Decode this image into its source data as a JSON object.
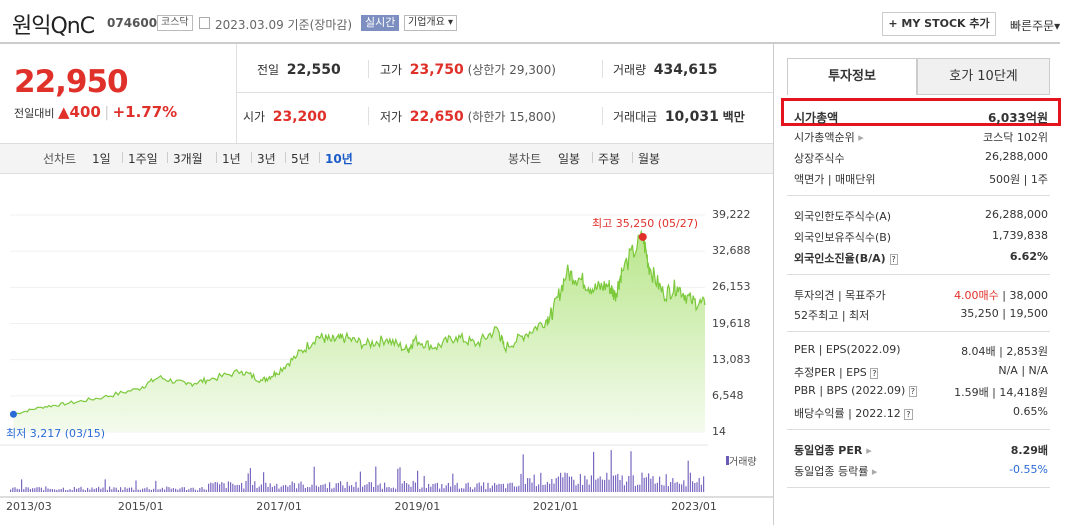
{
  "header": {
    "name": "원익QnC",
    "code": "074600",
    "market_badge": "코스닥",
    "date_text": "2023.03.09  기준(장마감)",
    "realtime_badge": "실시간",
    "company_overview": "기업개요",
    "my_stock_button": "+ MY STOCK 추가",
    "quick_order": "빠른주문"
  },
  "price": {
    "current": "22,950",
    "change_label": "전일대비",
    "change_arrow": "▲",
    "change": "400",
    "change_pct": "+1.77%"
  },
  "summary": {
    "prev_label": "전일",
    "prev": "22,550",
    "high_label": "고가",
    "high": "23,750",
    "upper_limit": "(상한가 29,300)",
    "volume_label": "거래량",
    "volume": "434,615",
    "open_label": "시가",
    "open": "23,200",
    "low_label": "저가",
    "low": "22,650",
    "lower_limit": "(하한가 15,800)",
    "amount_label": "거래대금",
    "amount": "10,031",
    "amount_unit": "백만"
  },
  "chart_tabs": {
    "line_chart_label": "선차트",
    "periods": [
      "1일",
      "1주일",
      "3개월",
      "1년",
      "3년",
      "5년",
      "10년"
    ],
    "selected_period": "10년",
    "candle_chart_label": "봉차트",
    "candles": [
      "일봉",
      "주봉",
      "월봉"
    ]
  },
  "chart_data": {
    "type": "area",
    "x_ticks": [
      "2013/03",
      "2015/01",
      "2017/01",
      "2019/01",
      "2021/01",
      "2023/01"
    ],
    "y_ticks": [
      "39,222",
      "32,688",
      "26,153",
      "19,618",
      "13,083",
      "6,548",
      "14"
    ],
    "high_annotation": "최고 35,250 (05/27)",
    "low_annotation": "최저 3,217 (03/15)",
    "volume_legend": "거래량",
    "series": [
      {
        "x": [
          2013.2,
          2013.6,
          2014.0,
          2014.5,
          2015.0,
          2015.3,
          2015.7,
          2016.0,
          2016.5,
          2016.8,
          2017.0,
          2017.3,
          2017.6,
          2017.8,
          2018.0,
          2018.3,
          2018.6,
          2018.9,
          2019.0,
          2019.3,
          2019.6,
          2019.9,
          2020.2,
          2020.3,
          2020.6,
          2020.9,
          2021.0,
          2021.2,
          2021.4,
          2021.6,
          2021.8,
          2021.9,
          2022.0,
          2022.3,
          2022.4,
          2022.6,
          2022.8,
          2023.0,
          2023.2
        ],
        "y": [
          3217,
          4500,
          5200,
          6300,
          7800,
          9900,
          8600,
          9400,
          11000,
          9300,
          10700,
          13800,
          17300,
          16500,
          17000,
          15800,
          16800,
          14800,
          16700,
          15300,
          17200,
          15900,
          18700,
          15200,
          17600,
          20200,
          21600,
          28800,
          27600,
          25800,
          26600,
          24700,
          29100,
          35250,
          29600,
          24900,
          26300,
          23700,
          22950
        ]
      }
    ]
  },
  "right_panel": {
    "tabs": [
      "투자정보",
      "호가 10단계"
    ],
    "market_cap_label": "시가총액",
    "market_cap": "6,033억원",
    "market_cap_rank_label": "시가총액순위",
    "market_cap_rank": "코스닥 102위",
    "shares_label": "상장주식수",
    "shares": "26,288,000",
    "par_label": "액면가 | 매매단위",
    "par": "500원 | 1주",
    "foreign_limit_label": "외국인한도주식수(A)",
    "foreign_limit": "26,288,000",
    "foreign_hold_label": "외국인보유주식수(B)",
    "foreign_hold": "1,739,838",
    "foreign_rate_label": "외국인소진율(B/A)",
    "foreign_rate": "6.62%",
    "opinion_label": "투자의견 | 목표주가",
    "opinion": "4.00매수",
    "target": "| 38,000",
    "week52_label": "52주최고 | 최저",
    "week52": "35,250 | 19,500",
    "per_label": "PER | EPS(2022.09)",
    "per": "8.04배 | 2,853원",
    "est_per_label": "추정PER | EPS",
    "est_per": "N/A | N/A",
    "pbr_label": "PBR | BPS (2022.09)",
    "pbr": "1.59배 | 14,418원",
    "div_label": "배당수익률 | 2022.12",
    "div": "0.65%",
    "sector_per_label": "동일업종 PER",
    "sector_per": "8.29배",
    "sector_change_label": "동일업종 등락률",
    "sector_change": "-0.55%"
  }
}
